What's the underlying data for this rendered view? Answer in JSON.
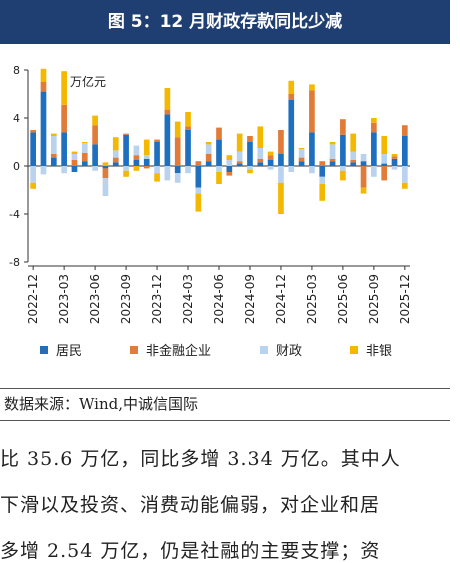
{
  "title": "图 5：12 月财政存款同比少减",
  "source": "数据来源：Wind,中诚信国际",
  "body_lines": [
    "比 35.6 万亿，同比多增 3.34 万亿。其中人",
    "下滑以及投资、消费动能偏弱，对企业和居",
    "多增 2.54 万亿，仍是社融的主要支撑；资"
  ],
  "chart_data": {
    "type": "bar",
    "stacked": true,
    "unit_label": "万亿元",
    "ylim": [
      -8,
      8
    ],
    "yticks": [
      8,
      4,
      0,
      -4,
      -8
    ],
    "ytick_labels": [
      "8",
      "4",
      "0",
      "-4",
      "-8"
    ],
    "xtick_labels": [
      "2022-12",
      "2023-03",
      "2023-06",
      "2023-09",
      "2023-12",
      "2024-03",
      "2024-06",
      "2024-09",
      "2024-12",
      "2025-03",
      "2025-06",
      "2025-09",
      "2025-12"
    ],
    "categories": [
      "2022-12",
      "2023-01",
      "2023-02",
      "2023-03",
      "2023-04",
      "2023-05",
      "2023-06",
      "2023-07",
      "2023-08",
      "2023-09",
      "2023-10",
      "2023-11",
      "2023-12",
      "2024-01",
      "2024-02",
      "2024-03",
      "2024-04",
      "2024-05",
      "2024-06",
      "2024-07",
      "2024-08",
      "2024-09",
      "2024-10",
      "2024-11",
      "2024-12",
      "2025-01",
      "2025-02",
      "2025-03",
      "2025-04",
      "2025-05",
      "2025-06",
      "2025-07",
      "2025-08",
      "2025-09",
      "2025-10",
      "2025-11",
      "2025-12"
    ],
    "legend": [
      "居民",
      "非金融企业",
      "财政",
      "非银"
    ],
    "colors": [
      "#1f6fbf",
      "#e07b39",
      "#b9d3ee",
      "#f5b800"
    ],
    "series": [
      {
        "name": "居民",
        "values": [
          2.8,
          6.2,
          0.7,
          2.8,
          -0.5,
          0.4,
          1.8,
          -0.2,
          0.3,
          2.6,
          0.5,
          0.6,
          2.0,
          4.3,
          -0.6,
          3.0,
          -1.8,
          0.4,
          2.2,
          -0.5,
          0.2,
          2.0,
          0.3,
          0.5,
          1.0,
          5.5,
          0.4,
          2.8,
          -0.9,
          0.4,
          2.6,
          0.3,
          0.4,
          2.8,
          0.2,
          0.6,
          2.5
        ]
      },
      {
        "name": "非金融企业",
        "values": [
          0.2,
          0.8,
          0.3,
          2.3,
          0.5,
          0.7,
          1.6,
          -0.8,
          0.4,
          0.1,
          0.4,
          -0.2,
          0.2,
          0.4,
          2.4,
          0.3,
          0.4,
          0.6,
          1.0,
          -0.3,
          0.2,
          0.5,
          0.3,
          0.4,
          2.0,
          0.5,
          0.3,
          3.5,
          0.4,
          0.2,
          1.3,
          0.2,
          -1.8,
          0.8,
          -1.2,
          0.2,
          0.9
        ]
      },
      {
        "name": "财政",
        "values": [
          -1.4,
          -0.7,
          1.5,
          -0.6,
          0.5,
          0.8,
          -0.4,
          -1.5,
          0.6,
          -0.4,
          0.8,
          0.3,
          -0.6,
          -1.2,
          -0.8,
          -0.6,
          -0.5,
          0.8,
          -0.5,
          0.5,
          0.8,
          -0.3,
          0.9,
          -0.3,
          -1.4,
          -0.5,
          0.7,
          -0.6,
          -0.6,
          1.2,
          -0.4,
          0.7,
          0.6,
          -0.9,
          0.8,
          -0.3,
          -1.4
        ]
      },
      {
        "name": "非银",
        "values": [
          -0.5,
          1.1,
          0.2,
          2.8,
          0.2,
          0.1,
          0.8,
          0.3,
          1.1,
          -0.5,
          -0.4,
          1.3,
          -0.7,
          1.8,
          1.3,
          1.2,
          -1.5,
          0.2,
          -1.0,
          0.4,
          1.5,
          -0.3,
          1.8,
          0.3,
          -2.6,
          1.1,
          0.1,
          0.5,
          -1.4,
          0.2,
          -0.8,
          1.5,
          -0.5,
          0.4,
          1.5,
          0.2,
          -0.5
        ]
      }
    ]
  }
}
